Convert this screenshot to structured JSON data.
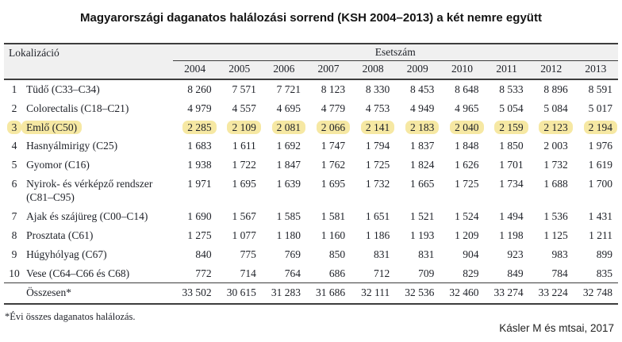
{
  "title": "Magyarországi daganatos halálozási sorrend (KSH 2004–2013) a két nemre együtt",
  "table": {
    "col_localization": "Lokalizáció",
    "col_cases": "Esetszám",
    "years": [
      "2004",
      "2005",
      "2006",
      "2007",
      "2008",
      "2009",
      "2010",
      "2011",
      "2012",
      "2013"
    ],
    "rows": [
      {
        "rank": "1",
        "label": "Tüdő (C33–C34)",
        "highlight": false,
        "values": [
          "8 260",
          "7 571",
          "7 721",
          "8 123",
          "8 330",
          "8 453",
          "8 648",
          "8 533",
          "8 896",
          "8 591"
        ]
      },
      {
        "rank": "2",
        "label": "Colorectalis (C18–C21)",
        "highlight": false,
        "values": [
          "4 979",
          "4 557",
          "4 695",
          "4 779",
          "4 753",
          "4 949",
          "4 965",
          "5 054",
          "5 084",
          "5 017"
        ]
      },
      {
        "rank": "3",
        "label": "Emlő (C50)",
        "highlight": true,
        "values": [
          "2 285",
          "2 109",
          "2 081",
          "2 066",
          "2 141",
          "2 183",
          "2 040",
          "2 159",
          "2 123",
          "2 194"
        ]
      },
      {
        "rank": "4",
        "label": "Hasnyálmirigy (C25)",
        "highlight": false,
        "values": [
          "1 683",
          "1 611",
          "1 692",
          "1 747",
          "1 794",
          "1 837",
          "1 848",
          "1 850",
          "2 003",
          "1 976"
        ]
      },
      {
        "rank": "5",
        "label": "Gyomor (C16)",
        "highlight": false,
        "values": [
          "1 938",
          "1 722",
          "1 847",
          "1 762",
          "1 725",
          "1 824",
          "1 626",
          "1 701",
          "1 732",
          "1 619"
        ]
      },
      {
        "rank": "6",
        "label": "Nyirok- és vérképző rendszer (C81–C95)",
        "highlight": false,
        "values": [
          "1 971",
          "1 695",
          "1 639",
          "1 695",
          "1 732",
          "1 665",
          "1 725",
          "1 734",
          "1 688",
          "1 700"
        ]
      },
      {
        "rank": "7",
        "label": "Ajak és szájüreg (C00–C14)",
        "highlight": false,
        "values": [
          "1 690",
          "1 567",
          "1 585",
          "1 581",
          "1 651",
          "1 521",
          "1 524",
          "1 494",
          "1 536",
          "1 431"
        ]
      },
      {
        "rank": "8",
        "label": "Prosztata (C61)",
        "highlight": false,
        "values": [
          "1 275",
          "1 077",
          "1 180",
          "1 160",
          "1 186",
          "1 193",
          "1 209",
          "1 198",
          "1 125",
          "1 211"
        ]
      },
      {
        "rank": "9",
        "label": "Húgyhólyag (C67)",
        "highlight": false,
        "values": [
          "840",
          "775",
          "769",
          "850",
          "831",
          "831",
          "904",
          "923",
          "983",
          "899"
        ]
      },
      {
        "rank": "10",
        "label": "Vese (C64–C66 és C68)",
        "highlight": false,
        "values": [
          "772",
          "714",
          "764",
          "686",
          "712",
          "709",
          "829",
          "849",
          "784",
          "835"
        ]
      }
    ],
    "total": {
      "label": "Összesen*",
      "values": [
        "33 502",
        "30 615",
        "31 283",
        "31 686",
        "32 111",
        "32 536",
        "32 460",
        "33 274",
        "33 224",
        "32 748"
      ]
    }
  },
  "footnote": "*Évi összes daganatos halálozás.",
  "attribution": "Kásler M és mtsai, 2017",
  "colors": {
    "highlight": "#f6e8a3",
    "header_bg": "#f0f0f0",
    "border": "#3d3d3d",
    "text": "#1e2128"
  },
  "chart_data": {
    "type": "table",
    "title": "Magyarországi daganatos halálozási sorrend (KSH 2004–2013) a két nemre együtt",
    "columns": [
      "Lokalizáció",
      "2004",
      "2005",
      "2006",
      "2007",
      "2008",
      "2009",
      "2010",
      "2011",
      "2012",
      "2013"
    ],
    "rows": [
      {
        "rank": 1,
        "localization": "Tüdő (C33–C34)",
        "values": [
          8260,
          7571,
          7721,
          8123,
          8330,
          8453,
          8648,
          8533,
          8896,
          8591
        ]
      },
      {
        "rank": 2,
        "localization": "Colorectalis (C18–C21)",
        "values": [
          4979,
          4557,
          4695,
          4779,
          4753,
          4949,
          4965,
          5054,
          5084,
          5017
        ]
      },
      {
        "rank": 3,
        "localization": "Emlő (C50)",
        "values": [
          2285,
          2109,
          2081,
          2066,
          2141,
          2183,
          2040,
          2159,
          2123,
          2194
        ]
      },
      {
        "rank": 4,
        "localization": "Hasnyálmirigy (C25)",
        "values": [
          1683,
          1611,
          1692,
          1747,
          1794,
          1837,
          1848,
          1850,
          2003,
          1976
        ]
      },
      {
        "rank": 5,
        "localization": "Gyomor (C16)",
        "values": [
          1938,
          1722,
          1847,
          1762,
          1725,
          1824,
          1626,
          1701,
          1732,
          1619
        ]
      },
      {
        "rank": 6,
        "localization": "Nyirok- és vérképző rendszer (C81–C95)",
        "values": [
          1971,
          1695,
          1639,
          1695,
          1732,
          1665,
          1725,
          1734,
          1688,
          1700
        ]
      },
      {
        "rank": 7,
        "localization": "Ajak és szájüreg (C00–C14)",
        "values": [
          1690,
          1567,
          1585,
          1581,
          1651,
          1521,
          1524,
          1494,
          1536,
          1431
        ]
      },
      {
        "rank": 8,
        "localization": "Prosztata (C61)",
        "values": [
          1275,
          1077,
          1180,
          1160,
          1186,
          1193,
          1209,
          1198,
          1125,
          1211
        ]
      },
      {
        "rank": 9,
        "localization": "Húgyhólyag (C67)",
        "values": [
          840,
          775,
          769,
          850,
          831,
          831,
          904,
          923,
          983,
          899
        ]
      },
      {
        "rank": 10,
        "localization": "Vese (C64–C66 és C68)",
        "values": [
          772,
          714,
          764,
          686,
          712,
          709,
          829,
          849,
          784,
          835
        ]
      }
    ],
    "total": {
      "label": "Összesen*",
      "values": [
        33502,
        30615,
        31283,
        31686,
        32111,
        32536,
        32460,
        33274,
        33224,
        32748
      ]
    },
    "highlighted_row": "Emlő (C50)",
    "footnote": "*Évi összes daganatos halálozás.",
    "source": "Kásler M és mtsai, 2017"
  }
}
